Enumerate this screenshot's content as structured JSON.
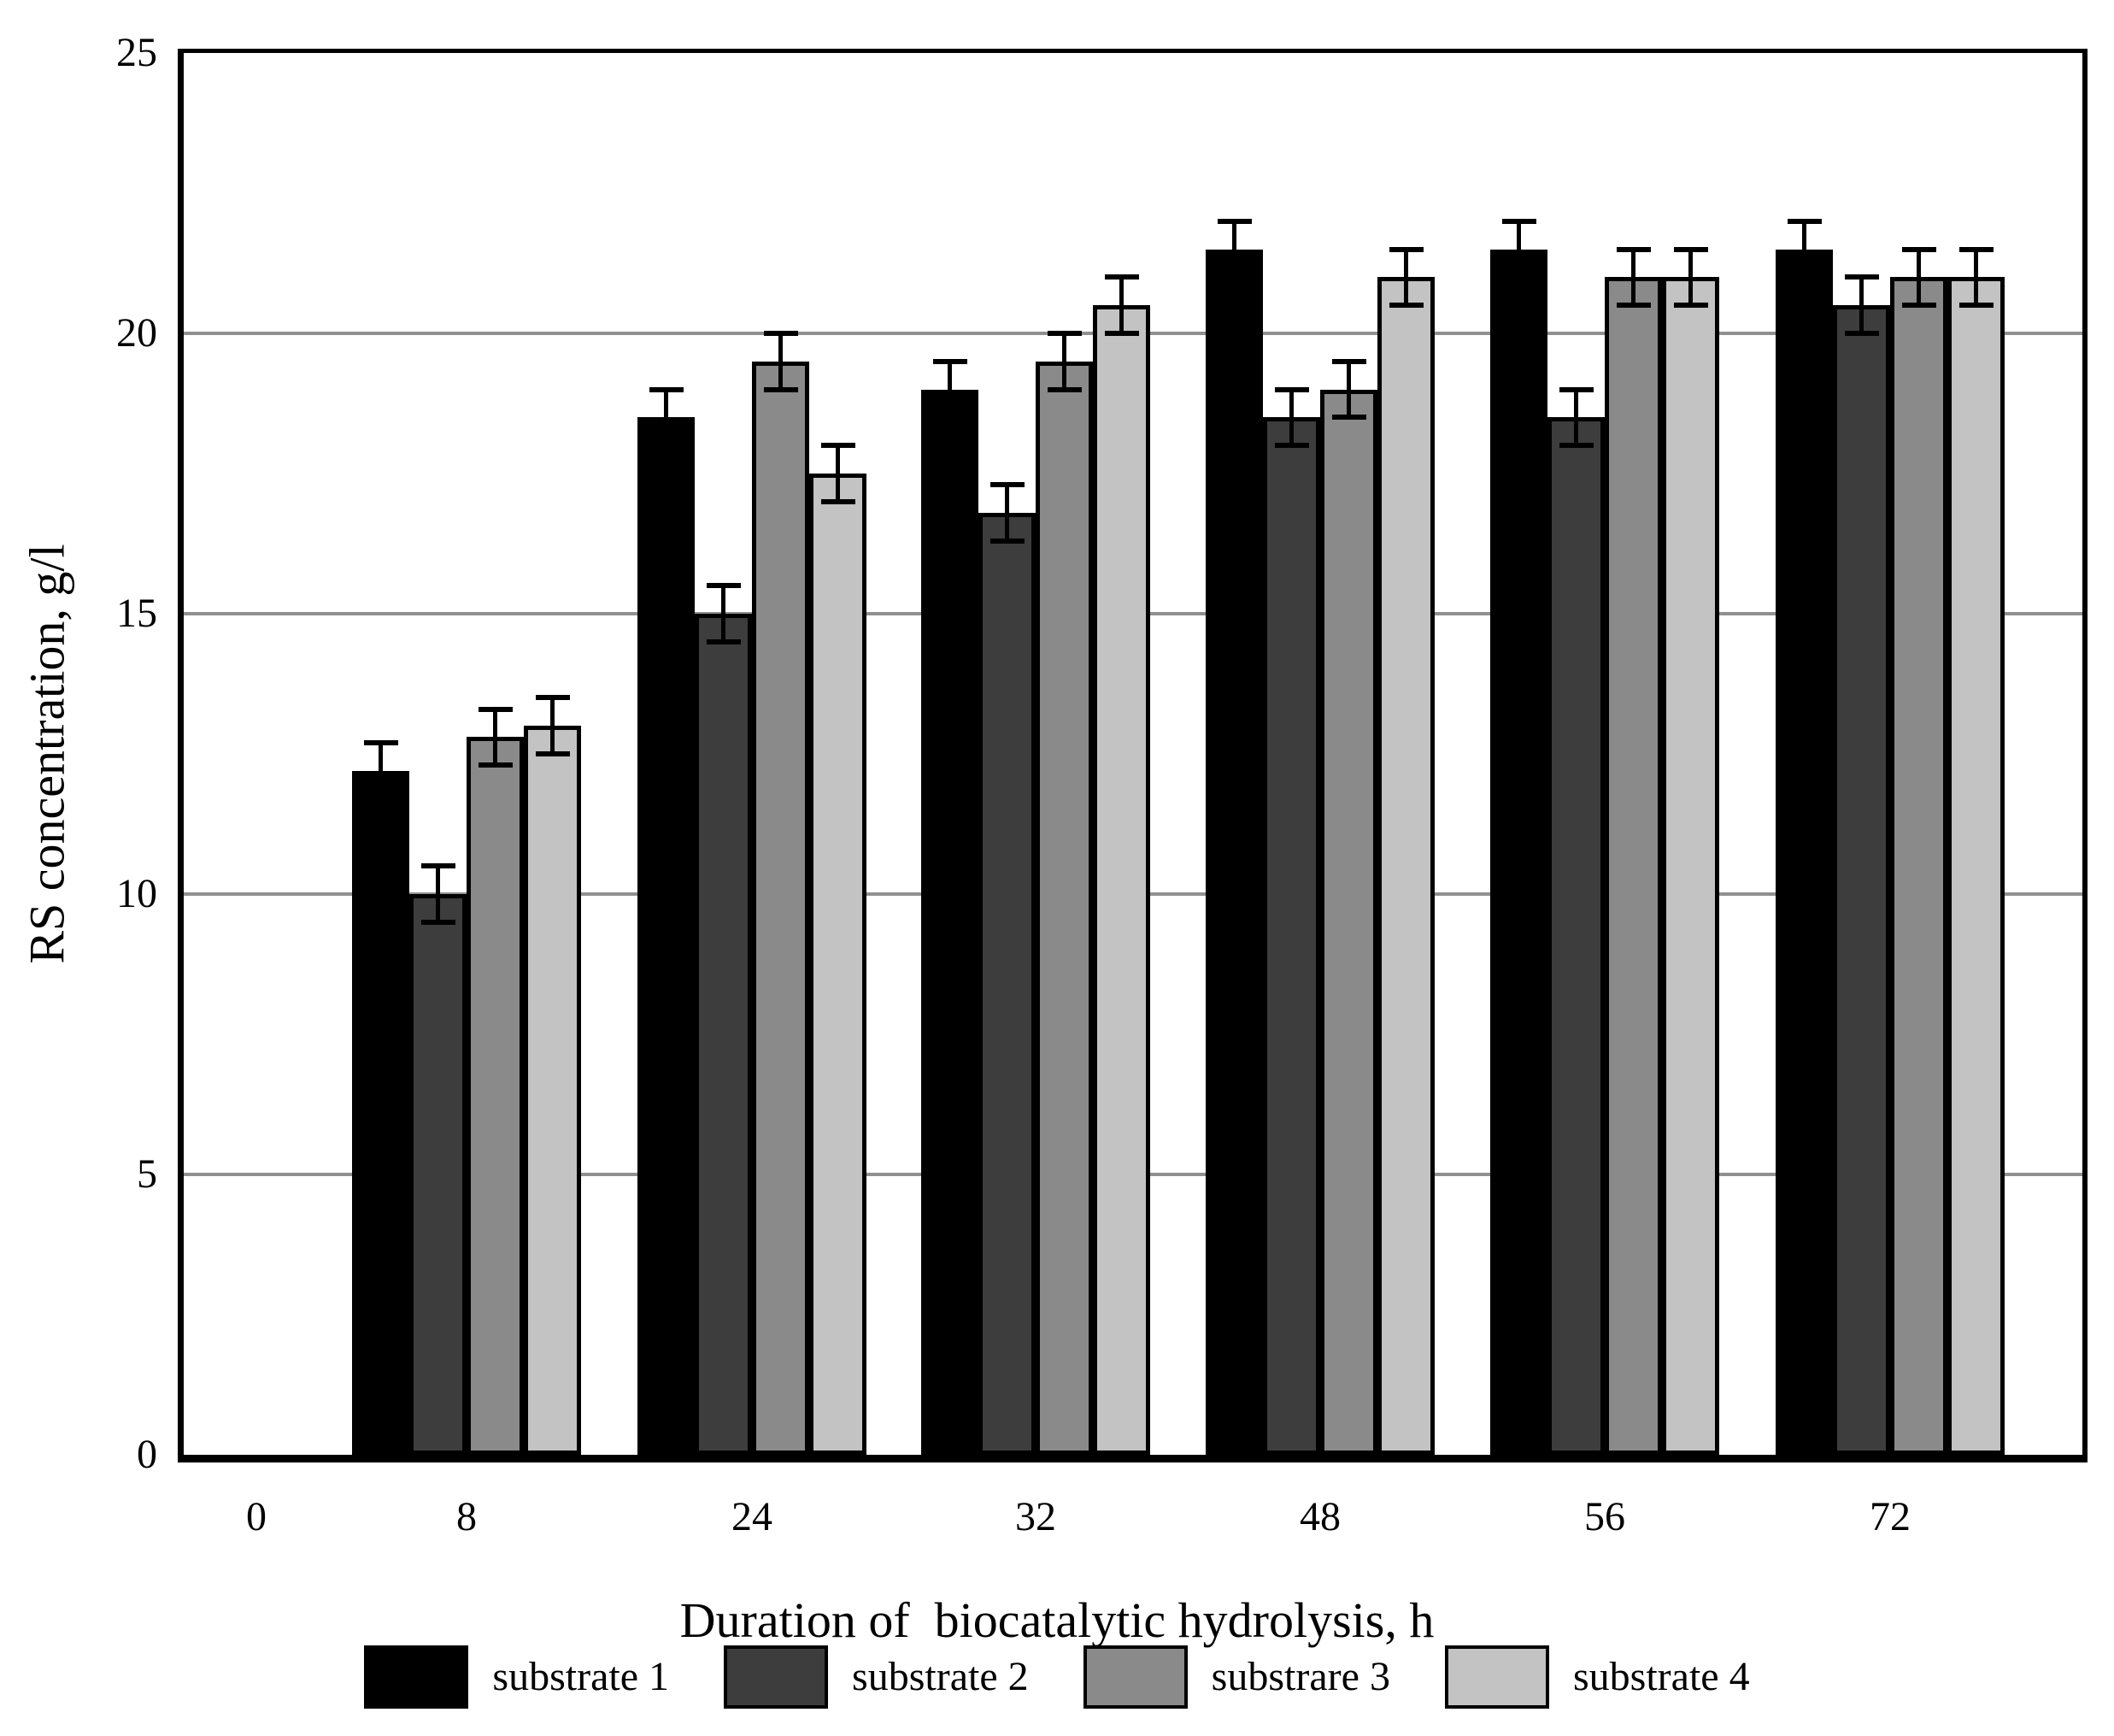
{
  "figure": {
    "background": "#ffffff",
    "text_color": "#000000",
    "axis_frame_color": "#000000",
    "gridline_color": "#909090"
  },
  "chart_data": {
    "type": "bar",
    "title": "",
    "xlabel": "Duration of  biocatalytic hydrolysis, h",
    "ylabel": "RS concentration, g/l",
    "ylim": [
      0,
      25
    ],
    "yticks": [
      0,
      5,
      10,
      15,
      20,
      25
    ],
    "grid": "horizontal gridlines every 5 units",
    "legend_position": "bottom",
    "plot_frame": "full black border on all four sides",
    "categories": [
      "0",
      "8",
      "24",
      "32",
      "48",
      "56",
      "72"
    ],
    "series": [
      {
        "name": "substrate 1",
        "color": "#000000",
        "values": [
          0,
          12.2,
          18.5,
          19.0,
          21.5,
          21.5,
          21.5
        ],
        "errors": [
          0,
          0.5,
          0.5,
          0.5,
          0.5,
          0.5,
          0.5
        ]
      },
      {
        "name": "substrate 2",
        "color": "#3d3d3d",
        "values": [
          0,
          10.0,
          15.0,
          16.8,
          18.5,
          18.5,
          20.5
        ],
        "errors": [
          0,
          0.5,
          0.5,
          0.5,
          0.5,
          0.5,
          0.5
        ]
      },
      {
        "name": "substrare 3",
        "color": "#8a8a8a",
        "values": [
          0,
          12.8,
          19.5,
          19.5,
          19.0,
          21.0,
          21.0
        ],
        "errors": [
          0,
          0.5,
          0.5,
          0.5,
          0.5,
          0.5,
          0.5
        ]
      },
      {
        "name": "substrate 4",
        "color": "#c3c3c3",
        "values": [
          0,
          13.0,
          17.5,
          20.5,
          21.0,
          21.0,
          21.0
        ],
        "errors": [
          0,
          0.5,
          0.5,
          0.5,
          0.5,
          0.5,
          0.5
        ]
      }
    ]
  }
}
